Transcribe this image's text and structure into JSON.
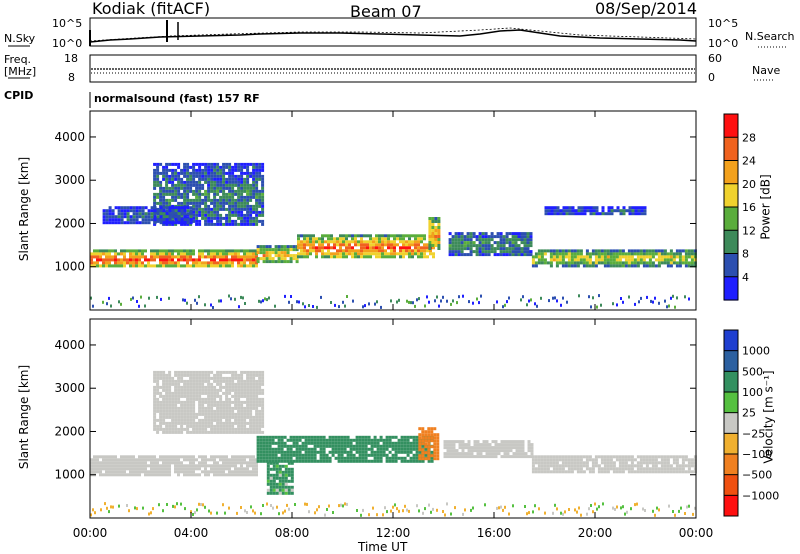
{
  "header": {
    "station": "Kodiak (fitACF)",
    "beam": "Beam 07",
    "date": "08/Sep/2014"
  },
  "aux": {
    "nsky_label": "N.Sky",
    "nsearch_label": "N.Search",
    "noise_ticks": [
      "10^5",
      "10^0"
    ],
    "freq_label": "Freq.",
    "freq_unit": "[MHz]",
    "freq_ticks": [
      "18",
      "8"
    ],
    "nave_label": "Nave",
    "nave_ticks": [
      "60",
      "0"
    ],
    "cpid_label": "CPID",
    "cpid_value": "normalsound (fast) 157 RF"
  },
  "colors": {
    "power_scale": [
      "#1f1fff",
      "#2c4fb0",
      "#3d8a5a",
      "#5aad3c",
      "#f0d22e",
      "#f3a11c",
      "#f0621e",
      "#ff1010"
    ],
    "velocity_scale": [
      "#1f3fd0",
      "#2c60a0",
      "#339060",
      "#55c040",
      "#c8c8c4",
      "#f0b030",
      "#f08020",
      "#f05010",
      "#ff1010"
    ]
  },
  "chart_data": [
    {
      "type": "heatmap",
      "panel": "power",
      "ylabel": "Slant Range [km]",
      "ylim": [
        0,
        4600
      ],
      "yticks": [
        "1000",
        "2000",
        "3000",
        "4000"
      ],
      "xlim": [
        0,
        24
      ],
      "xticks": [
        "00:00",
        "04:00",
        "08:00",
        "12:00",
        "16:00",
        "20:00",
        "00:00"
      ],
      "colorbar_label": "Power [dB]",
      "colorbar_ticks": [
        "4",
        "8",
        "12",
        "16",
        "20",
        "24",
        "28"
      ],
      "bands": [
        {
          "t0": 0.0,
          "t1": 6.6,
          "r0": 1000,
          "r1": 1400,
          "level": 27
        },
        {
          "t0": 6.6,
          "t1": 8.2,
          "r0": 1100,
          "r1": 1500,
          "level": 20
        },
        {
          "t0": 8.2,
          "t1": 13.6,
          "r0": 1200,
          "r1": 1750,
          "level": 25
        },
        {
          "t0": 13.4,
          "t1": 13.8,
          "r0": 1400,
          "r1": 2150,
          "level": 22
        },
        {
          "t0": 14.2,
          "t1": 17.5,
          "r0": 1300,
          "r1": 1800,
          "level": 10
        },
        {
          "t0": 17.5,
          "t1": 24.0,
          "r0": 1050,
          "r1": 1400,
          "level": 18
        },
        {
          "t0": 2.5,
          "t1": 6.8,
          "r0": 1950,
          "r1": 3400,
          "level": 9
        },
        {
          "t0": 0.5,
          "t1": 4.0,
          "r0": 2050,
          "r1": 2400,
          "level": 7
        },
        {
          "t0": 18.0,
          "t1": 22.0,
          "r0": 2200,
          "r1": 2400,
          "level": 6
        }
      ]
    },
    {
      "type": "heatmap",
      "panel": "velocity",
      "ylabel": "Slant Range [km]",
      "ylim": [
        0,
        4600
      ],
      "yticks": [
        "1000",
        "2000",
        "3000",
        "4000"
      ],
      "xlim": [
        0,
        24
      ],
      "xticks": [
        "00:00",
        "04:00",
        "08:00",
        "12:00",
        "16:00",
        "20:00",
        "00:00"
      ],
      "xlabel": "Time UT",
      "colorbar_label": "Velocity [m s⁻¹]",
      "colorbar_ticks": [
        "1000",
        "500",
        "100",
        "25",
        "−25",
        "−100",
        "−500",
        "−1000"
      ],
      "bands": [
        {
          "t0": 0.0,
          "t1": 6.6,
          "r0": 1000,
          "r1": 1450,
          "level": 0
        },
        {
          "t0": 6.6,
          "t1": 13.6,
          "r0": 1300,
          "r1": 1900,
          "level": 300
        },
        {
          "t0": 7.0,
          "t1": 8.0,
          "r0": 600,
          "r1": 1300,
          "level": 200
        },
        {
          "t0": 13.0,
          "t1": 13.8,
          "r0": 1400,
          "r1": 2100,
          "level": -300
        },
        {
          "t0": 14.0,
          "t1": 17.5,
          "r0": 1400,
          "r1": 1800,
          "level": 0
        },
        {
          "t0": 17.5,
          "t1": 24.0,
          "r0": 1050,
          "r1": 1450,
          "level": 0
        },
        {
          "t0": 2.5,
          "t1": 6.8,
          "r0": 1950,
          "r1": 3400,
          "level": 0
        }
      ]
    }
  ]
}
